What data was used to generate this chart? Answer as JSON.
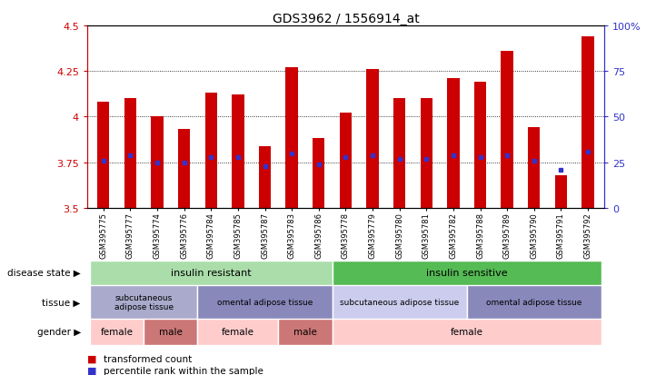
{
  "title": "GDS3962 / 1556914_at",
  "samples": [
    "GSM395775",
    "GSM395777",
    "GSM395774",
    "GSM395776",
    "GSM395784",
    "GSM395785",
    "GSM395787",
    "GSM395783",
    "GSM395786",
    "GSM395778",
    "GSM395779",
    "GSM395780",
    "GSM395781",
    "GSM395782",
    "GSM395788",
    "GSM395789",
    "GSM395790",
    "GSM395791",
    "GSM395792"
  ],
  "bar_values": [
    4.08,
    4.1,
    4.0,
    3.93,
    4.13,
    4.12,
    3.84,
    4.27,
    3.88,
    4.02,
    4.26,
    4.1,
    4.1,
    4.21,
    4.19,
    4.36,
    3.94,
    3.68,
    4.44
  ],
  "blue_values": [
    3.76,
    3.79,
    3.75,
    3.75,
    3.78,
    3.78,
    3.73,
    3.8,
    3.74,
    3.78,
    3.79,
    3.77,
    3.77,
    3.79,
    3.78,
    3.79,
    3.76,
    3.71,
    3.81
  ],
  "bar_bottom": 3.5,
  "y_min": 3.5,
  "y_max": 4.5,
  "y_ticks": [
    3.5,
    3.75,
    4.0,
    4.25,
    4.5
  ],
  "y_tick_labels": [
    "3.5",
    "3.75",
    "4",
    "4.25",
    "4.5"
  ],
  "right_y_ticks_pct": [
    0,
    25,
    50,
    75,
    100
  ],
  "right_y_labels": [
    "0",
    "25",
    "50",
    "75",
    "100%"
  ],
  "bar_color": "#cc0000",
  "blue_color": "#3333cc",
  "disease_state_groups": [
    {
      "label": "insulin resistant",
      "start": 0,
      "end": 9,
      "color": "#aaddaa"
    },
    {
      "label": "insulin sensitive",
      "start": 9,
      "end": 19,
      "color": "#55bb55"
    }
  ],
  "tissue_groups": [
    {
      "label": "subcutaneous\nadipose tissue",
      "start": 0,
      "end": 4,
      "color": "#aaaacc"
    },
    {
      "label": "omental adipose tissue",
      "start": 4,
      "end": 9,
      "color": "#8888bb"
    },
    {
      "label": "subcutaneous adipose tissue",
      "start": 9,
      "end": 14,
      "color": "#ccccee"
    },
    {
      "label": "omental adipose tissue",
      "start": 14,
      "end": 19,
      "color": "#8888bb"
    }
  ],
  "gender_groups": [
    {
      "label": "female",
      "start": 0,
      "end": 2,
      "color": "#ffcccc"
    },
    {
      "label": "male",
      "start": 2,
      "end": 4,
      "color": "#cc7777"
    },
    {
      "label": "female",
      "start": 4,
      "end": 7,
      "color": "#ffcccc"
    },
    {
      "label": "male",
      "start": 7,
      "end": 9,
      "color": "#cc7777"
    },
    {
      "label": "female",
      "start": 9,
      "end": 19,
      "color": "#ffcccc"
    }
  ],
  "legend_items": [
    {
      "label": "transformed count",
      "color": "#cc0000"
    },
    {
      "label": "percentile rank within the sample",
      "color": "#3333cc"
    }
  ],
  "axis_color_left": "#cc0000",
  "axis_color_right": "#3333cc",
  "background_color": "#ffffff",
  "plot_bg_color": "#ffffff"
}
